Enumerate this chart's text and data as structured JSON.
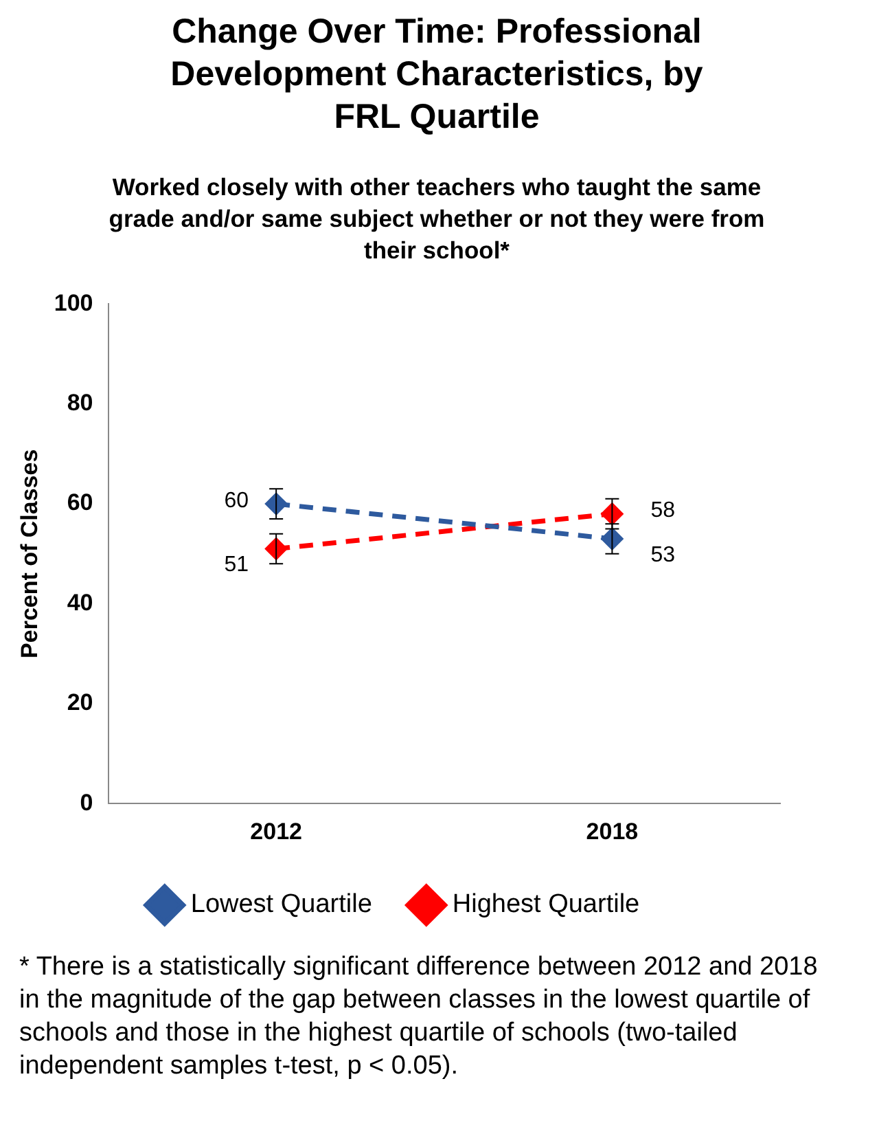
{
  "chart_data": {
    "type": "line",
    "title": "Change Over Time: Professional Development Characteristics, by FRL Quartile",
    "subtitle": "Worked closely with other teachers who taught the same grade and/or same subject whether or not they were from their school*",
    "ylabel": "Percent of Classes",
    "categories": [
      "2012",
      "2018"
    ],
    "series": [
      {
        "name": "Lowest Quartile",
        "color": "#2e5a9e",
        "values": [
          60,
          53
        ],
        "errors": [
          3,
          3
        ]
      },
      {
        "name": "Highest Quartile",
        "color": "#ff0000",
        "values": [
          51,
          58
        ],
        "errors": [
          3,
          3
        ]
      }
    ],
    "ylim": [
      0,
      100
    ],
    "yticks": [
      0,
      20,
      40,
      60,
      80,
      100
    ],
    "grid": false,
    "legend": "bottom",
    "marker": "diamond",
    "line_style": "dashed",
    "data_labels": true,
    "annotations": [
      "*  There is a statistically significant difference between 2012 and 2018 in the magnitude of the gap between classes in the lowest quartile of schools and those in the highest quartile of schools (two-tailed independent samples t-test, p < 0.05)."
    ]
  }
}
